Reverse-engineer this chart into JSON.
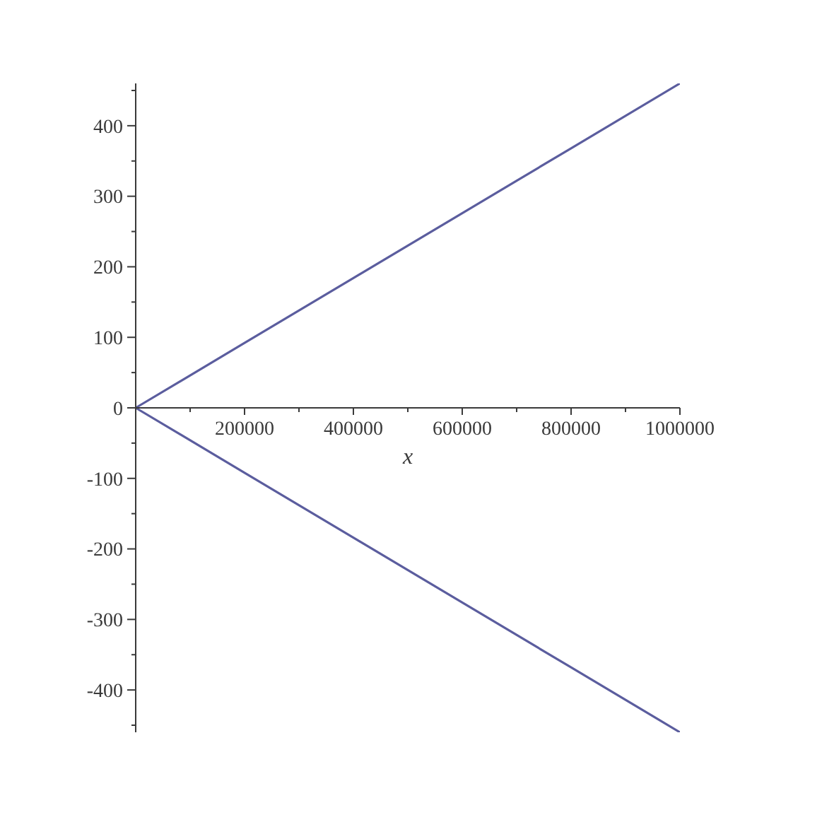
{
  "chart_data": {
    "type": "line",
    "x": [
      0,
      200000,
      400000,
      600000,
      800000,
      1000000
    ],
    "series": [
      {
        "color": "#5b5d9e",
        "values": [
          0,
          92,
          184,
          276,
          368,
          460
        ]
      },
      {
        "color": "#5b5d9e",
        "values": [
          0,
          -92,
          -184,
          -276,
          -368,
          -460
        ]
      }
    ],
    "xlabel": "x",
    "xlim": [
      0,
      1000000
    ],
    "ylim": [
      -460,
      460
    ],
    "xticks": [
      {
        "value": 100000,
        "label": null
      },
      200000,
      {
        "value": 300000,
        "label": null
      },
      400000,
      {
        "value": 500000,
        "label": null
      },
      600000,
      {
        "value": 700000,
        "label": null
      },
      800000,
      {
        "value": 900000,
        "label": null
      },
      1000000
    ],
    "yticks": [
      {
        "value": -450,
        "label": null
      },
      -400,
      {
        "value": -350,
        "label": null
      },
      -300,
      {
        "value": -250,
        "label": null
      },
      -200,
      {
        "value": -150,
        "label": null
      },
      -100,
      {
        "value": -50,
        "label": null
      },
      0,
      {
        "value": 50,
        "label": null
      },
      100,
      {
        "value": 150,
        "label": null
      },
      200,
      {
        "value": 250,
        "label": null
      },
      300,
      {
        "value": 350,
        "label": null
      },
      400,
      {
        "value": 450,
        "label": null
      }
    ]
  }
}
